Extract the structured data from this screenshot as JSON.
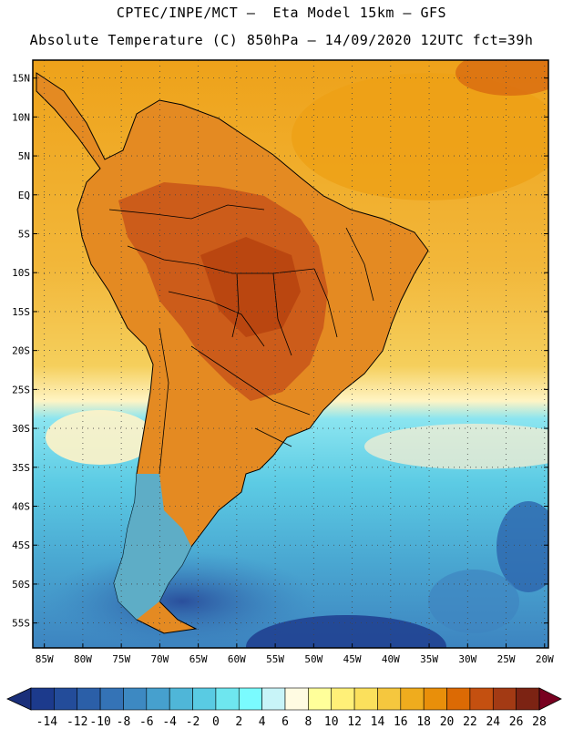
{
  "header": {
    "line1": "CPTEC/INPE/MCT –  Eta Model 15km – GFS",
    "line2": "Absolute Temperature (C) 850hPa – 14/09/2020 12UTC fct=39h"
  },
  "map": {
    "lat_labels": [
      "15N",
      "10N",
      "5N",
      "EQ",
      "5S",
      "10S",
      "15S",
      "20S",
      "25S",
      "30S",
      "35S",
      "40S",
      "45S",
      "50S",
      "55S"
    ],
    "lat_values": [
      15,
      10,
      5,
      0,
      -5,
      -10,
      -15,
      -20,
      -25,
      -30,
      -35,
      -40,
      -45,
      -50,
      -55
    ],
    "lon_labels": [
      "85W",
      "80W",
      "75W",
      "70W",
      "65W",
      "60W",
      "55W",
      "50W",
      "45W",
      "40W",
      "35W",
      "30W",
      "25W",
      "20W"
    ],
    "lon_values": [
      -85,
      -80,
      -75,
      -70,
      -65,
      -60,
      -55,
      -50,
      -45,
      -40,
      -35,
      -30,
      -25,
      -20
    ]
  },
  "colorbar": {
    "labels": [
      "-14",
      "-12",
      "-10",
      "-8",
      "-6",
      "-4",
      "-2",
      "0",
      "2",
      "4",
      "6",
      "8",
      "10",
      "12",
      "14",
      "16",
      "18",
      "20",
      "22",
      "24",
      "26",
      "28"
    ],
    "colors": [
      "#1c3a8c",
      "#234c9a",
      "#2b5fa8",
      "#3473b6",
      "#3d89c2",
      "#46a0ce",
      "#4fb6d8",
      "#59cbe3",
      "#6ee6ef",
      "#7afbff",
      "#c8f4f8",
      "#fffbe2",
      "#ffff9a",
      "#fff078",
      "#fbe05c",
      "#f5c73e",
      "#efac1e",
      "#e98f0a",
      "#dc6a04",
      "#c45010",
      "#a33a14",
      "#7c2313"
    ],
    "low_color": "#1a2f7a",
    "high_color": "#780020"
  },
  "colors": {
    "ocean_warm": "#f1b03a",
    "ocean_cool": "#55c2dc",
    "land": "#d9782a"
  }
}
